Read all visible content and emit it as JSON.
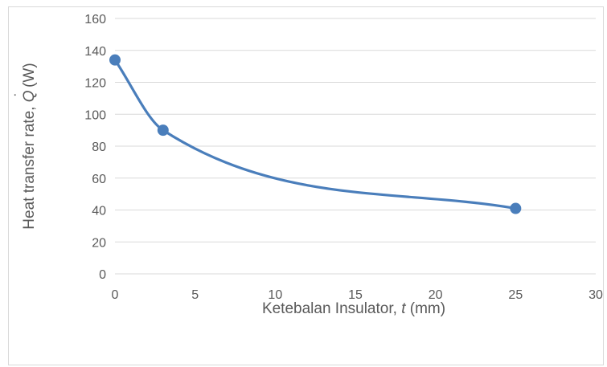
{
  "chart_data": {
    "type": "scatter",
    "xlabel": {
      "prefix": "Ketebalan Insulator, ",
      "var": "t",
      "suffix": " (mm)"
    },
    "ylabel": {
      "prefix": "Heat transfer rate, ",
      "var": "Q",
      "dot": "˙",
      "suffix": " (W)"
    },
    "xlim": [
      0,
      30
    ],
    "ylim": [
      0,
      160
    ],
    "xticks": [
      0,
      5,
      10,
      15,
      20,
      25,
      30
    ],
    "yticks": [
      0,
      20,
      40,
      60,
      80,
      100,
      120,
      140,
      160
    ],
    "grid": "horizontal",
    "smooth": true,
    "series": [
      {
        "color": "#4a7ebb",
        "x": [
          0,
          3,
          25
        ],
        "y": [
          134,
          90,
          41
        ]
      }
    ]
  }
}
